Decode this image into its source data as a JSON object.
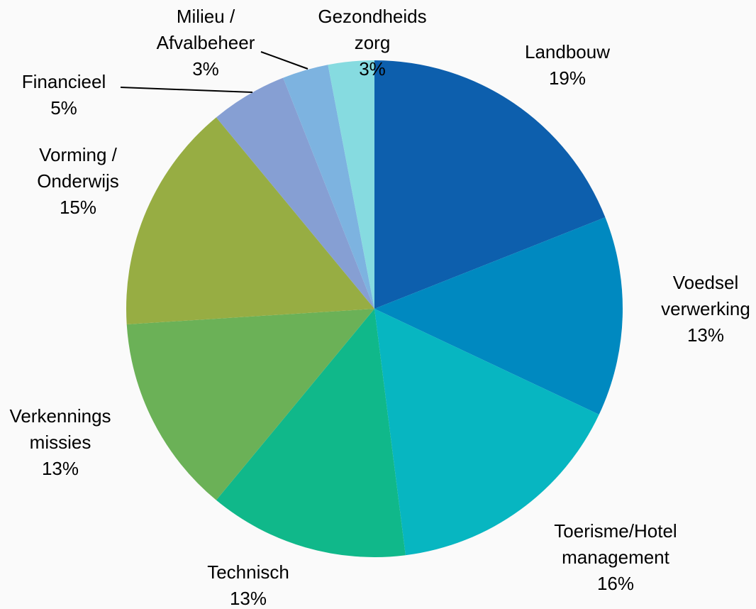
{
  "chart_data": {
    "type": "pie",
    "categories": [
      [
        "Landbouw"
      ],
      [
        "Voedsel",
        "verwerking"
      ],
      [
        "Toerisme/Hotel",
        "management"
      ],
      [
        "Technisch"
      ],
      [
        "Verkennings",
        "missies"
      ],
      [
        "Vorming /",
        "Onderwijs"
      ],
      [
        "Financieel"
      ],
      [
        "Milieu /",
        "Afvalbeheer"
      ],
      [
        "Gezondheids",
        "zorg"
      ]
    ],
    "values": [
      19,
      13,
      16,
      13,
      13,
      15,
      5,
      3,
      3
    ],
    "value_labels": [
      "19%",
      "13%",
      "16%",
      "13%",
      "13%",
      "15%",
      "5%",
      "3%",
      "3%"
    ],
    "colors": [
      "#0d5fad",
      "#0089c0",
      "#07b6c1",
      "#10b88a",
      "#6bb157",
      "#97ad43",
      "#869fd3",
      "#7db3e0",
      "#86dbe0"
    ]
  }
}
